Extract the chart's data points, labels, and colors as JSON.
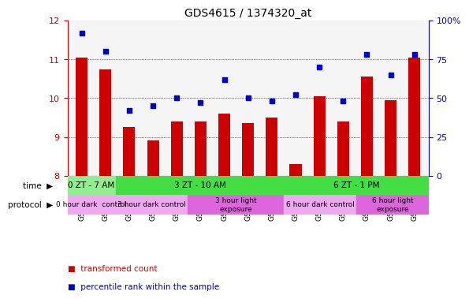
{
  "title": "GDS4615 / 1374320_at",
  "samples": [
    "GSM724207",
    "GSM724208",
    "GSM724209",
    "GSM724210",
    "GSM724211",
    "GSM724212",
    "GSM724213",
    "GSM724214",
    "GSM724215",
    "GSM724216",
    "GSM724217",
    "GSM724218",
    "GSM724219",
    "GSM724220",
    "GSM724221"
  ],
  "bar_values": [
    11.05,
    10.75,
    9.25,
    8.9,
    9.4,
    9.4,
    9.6,
    9.35,
    9.5,
    8.3,
    10.05,
    9.4,
    10.55,
    9.95,
    11.05
  ],
  "dot_values": [
    92,
    80,
    42,
    45,
    50,
    47,
    62,
    50,
    48,
    52,
    70,
    48,
    78,
    65,
    78
  ],
  "bar_color": "#cc0000",
  "dot_color": "#0000cc",
  "ylim_left": [
    8,
    12
  ],
  "ylim_right": [
    0,
    100
  ],
  "yticks_left": [
    8,
    9,
    10,
    11,
    12
  ],
  "yticks_right": [
    0,
    25,
    50,
    75,
    100
  ],
  "ytick_labels_right": [
    "0",
    "25",
    "50",
    "75",
    "100%"
  ],
  "grid_yticks": [
    9,
    10,
    11
  ],
  "time_groups": [
    {
      "label": "0 ZT - 7 AM",
      "start": 0,
      "end": 2,
      "color": "#90ee90"
    },
    {
      "label": "3 ZT - 10 AM",
      "start": 2,
      "end": 8,
      "color": "#00cc44"
    },
    {
      "label": "6 ZT - 1 PM",
      "start": 9,
      "end": 14,
      "color": "#00cc44"
    }
  ],
  "protocol_groups": [
    {
      "label": "0 hour dark  control",
      "start": 0,
      "end": 2,
      "color": "#ee82ee"
    },
    {
      "label": "3 hour dark control",
      "start": 2,
      "end": 5,
      "color": "#ee82ee"
    },
    {
      "label": "3 hour light\nexposure",
      "start": 5,
      "end": 8,
      "color": "#da70d6"
    },
    {
      "label": "6 hour dark control",
      "start": 9,
      "end": 12,
      "color": "#ee82ee"
    },
    {
      "label": "6 hour light\nexposure",
      "start": 12,
      "end": 14,
      "color": "#da70d6"
    }
  ],
  "legend_items": [
    {
      "label": "transformed count",
      "color": "#cc0000",
      "marker": "s"
    },
    {
      "label": "percentile rank within the sample",
      "color": "#0000cc",
      "marker": "s"
    }
  ]
}
